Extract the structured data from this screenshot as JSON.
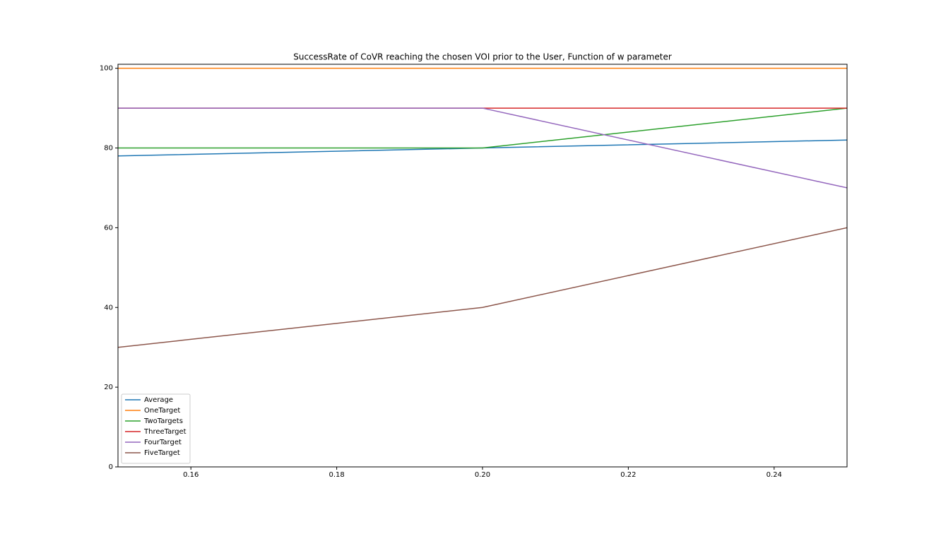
{
  "chart_data": {
    "type": "line",
    "title": "SuccessRate of CoVR reaching the chosen VOI prior to the User, Function of w parameter",
    "x": [
      0.15,
      0.2,
      0.25
    ],
    "series": [
      {
        "name": "Average",
        "color": "#1f77b4",
        "values": [
          78,
          80,
          82
        ]
      },
      {
        "name": "OneTarget",
        "color": "#ff7f0e",
        "values": [
          100,
          100,
          100
        ]
      },
      {
        "name": "TwoTargets",
        "color": "#2ca02c",
        "values": [
          80,
          80,
          90
        ]
      },
      {
        "name": "ThreeTarget",
        "color": "#d62728",
        "values": [
          90,
          90,
          90
        ]
      },
      {
        "name": "FourTarget",
        "color": "#9467bd",
        "values": [
          90,
          90,
          70
        ]
      },
      {
        "name": "FiveTarget",
        "color": "#8c564b",
        "values": [
          30,
          40,
          60
        ]
      }
    ],
    "xlim": [
      0.15,
      0.25
    ],
    "xticks": [
      0.16,
      0.18,
      {
        "value": 0.2,
        "label": "0.20"
      },
      0.22,
      0.24
    ],
    "ylim": [
      0,
      101
    ],
    "yticks": [
      0,
      20,
      40,
      60,
      80,
      100
    ],
    "grid": false,
    "legend": "lower left"
  }
}
